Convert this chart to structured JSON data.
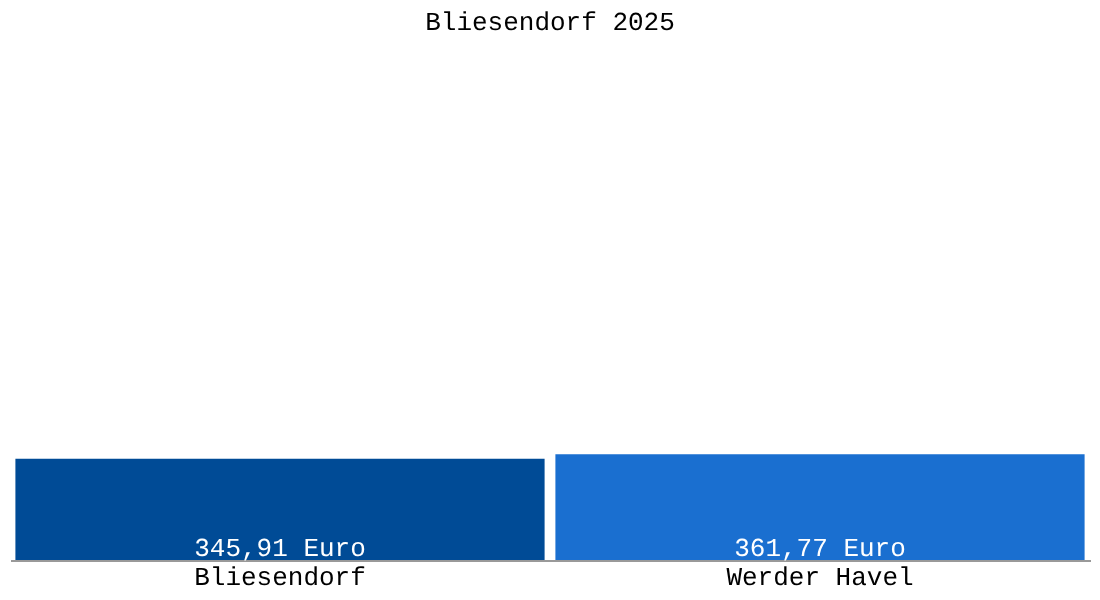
{
  "chart_data": {
    "type": "bar",
    "title": "Bliesendorf 2025",
    "categories": [
      "Bliesendorf",
      "Werder Havel"
    ],
    "values": [
      345.91,
      361.77
    ],
    "colors": [
      "#004b96",
      "#1a6fd0"
    ],
    "value_labels": [
      "345,91 Euro",
      "361,77 Euro"
    ],
    "grid": false
  }
}
